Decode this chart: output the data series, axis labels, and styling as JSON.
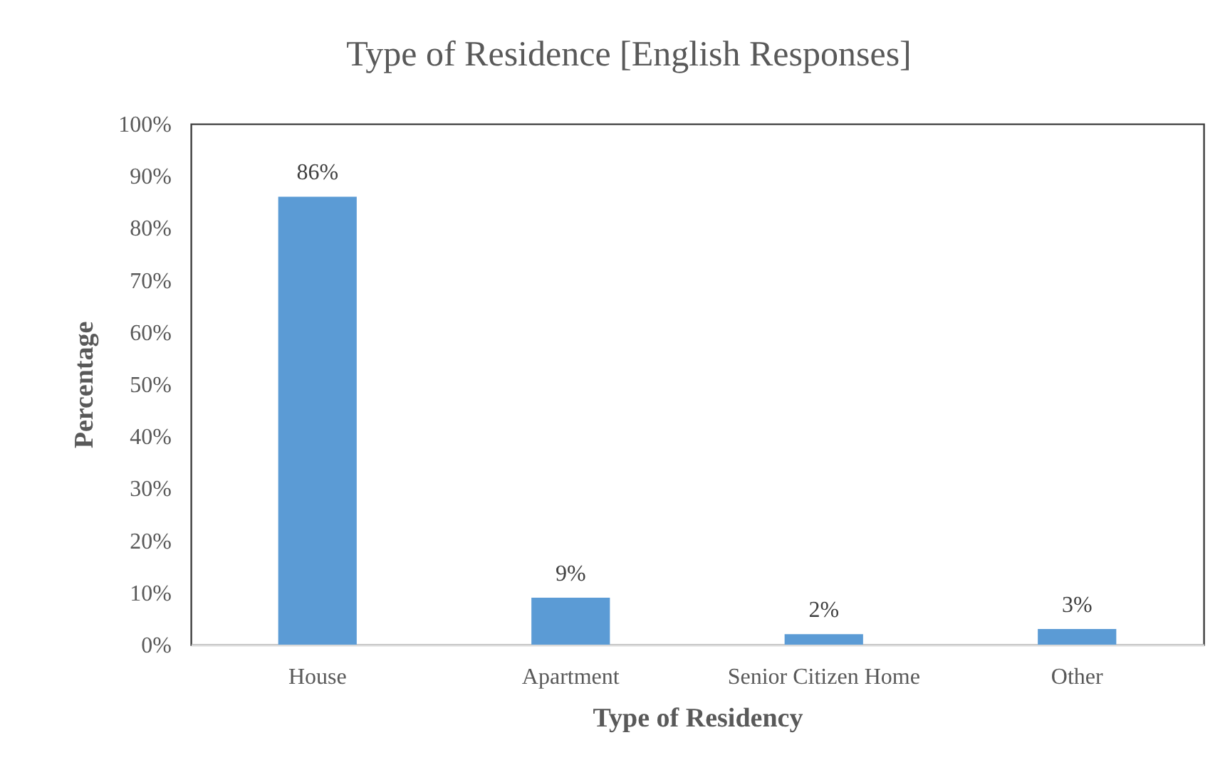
{
  "chart_data": {
    "type": "bar",
    "title": "Type of Residence [English Responses]",
    "xlabel": "Type of Residency",
    "ylabel": "Percentage",
    "categories": [
      "House",
      "Apartment",
      "Senior Citizen Home",
      "Other"
    ],
    "values": [
      86,
      9,
      2,
      3
    ],
    "color": "#5b9bd5",
    "value_labels": [
      "86%",
      "9%",
      "2%",
      "3%"
    ],
    "ylim": [
      0,
      100
    ],
    "yticks": [
      {
        "value": 0,
        "label": "0%"
      },
      {
        "value": 10,
        "label": "10%"
      },
      {
        "value": 20,
        "label": "20%"
      },
      {
        "value": 30,
        "label": "30%"
      },
      {
        "value": 40,
        "label": "40%"
      },
      {
        "value": 50,
        "label": "50%"
      },
      {
        "value": 60,
        "label": "60%"
      },
      {
        "value": 70,
        "label": "70%"
      },
      {
        "value": 80,
        "label": "80%"
      },
      {
        "value": 90,
        "label": "90%"
      },
      {
        "value": 100,
        "label": "100%"
      }
    ],
    "grid": false
  }
}
